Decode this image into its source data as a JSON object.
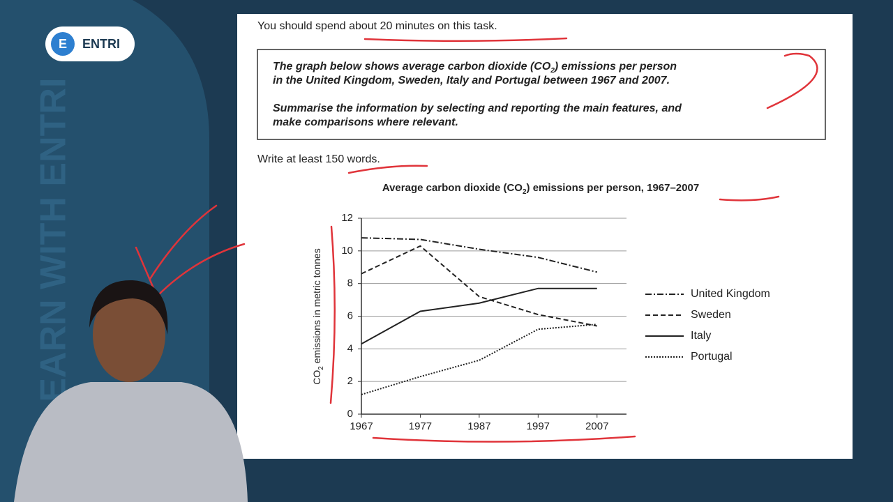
{
  "header": {
    "logo": "ENTRI",
    "side_text": "LEARN WITH ENTRI"
  },
  "task": {
    "time_note": "You should spend about 20 minutes on this task.",
    "prompt_lines": [
      [
        "The graph below shows average carbon dioxide (CO",
        "2",
        ") emissions per person"
      ],
      [
        "in the United Kingdom, Sweden, Italy and Portugal between 1967 and 2007."
      ],
      [
        "Summarise the information by selecting and reporting the main features, and"
      ],
      [
        "make comparisons where relevant."
      ]
    ],
    "word_note": "Write at least 150 words."
  },
  "chart_data": {
    "type": "line",
    "title_parts": [
      "Average carbon dioxide (CO",
      "2",
      ") emissions per person, 1967–2007"
    ],
    "y_label_parts": [
      "CO",
      "2",
      " emissions in metric tonnes"
    ],
    "x": [
      1967,
      1977,
      1987,
      1997,
      2007
    ],
    "xlim": [
      1967,
      2012
    ],
    "xticks": [
      1967,
      1977,
      1987,
      1997,
      2007
    ],
    "ylim": [
      0,
      12
    ],
    "yticks": [
      0,
      2,
      4,
      6,
      8,
      10,
      12
    ],
    "grid": true,
    "legend": "right",
    "series": [
      {
        "name": "United Kingdom",
        "color": "#222222",
        "style": "dash-dot",
        "values": [
          10.8,
          10.7,
          10.1,
          9.6,
          8.7
        ]
      },
      {
        "name": "Sweden",
        "color": "#222222",
        "style": "dashed",
        "values": [
          8.6,
          10.3,
          7.2,
          6.1,
          5.4
        ]
      },
      {
        "name": "Italy",
        "color": "#222222",
        "style": "solid",
        "values": [
          4.3,
          6.3,
          6.8,
          7.7,
          7.7
        ]
      },
      {
        "name": "Portugal",
        "color": "#222222",
        "style": "dotted",
        "values": [
          1.2,
          2.3,
          3.3,
          5.2,
          5.5
        ]
      }
    ]
  }
}
